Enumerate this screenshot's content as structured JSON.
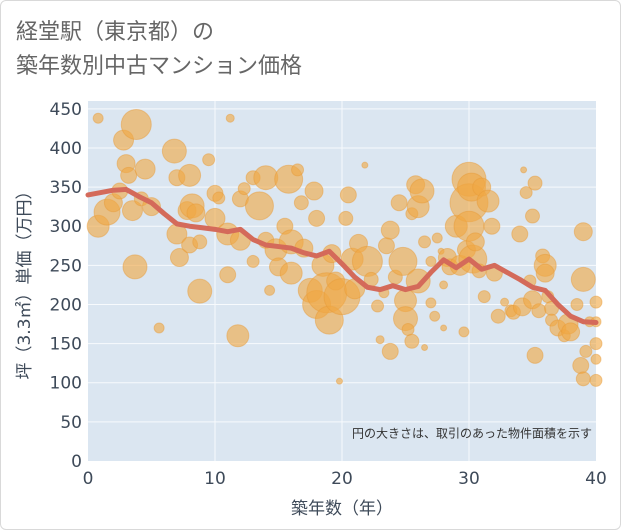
{
  "title_line1": "経堂駅（東京都）の",
  "title_line2": "築年数別中古マンション価格",
  "colors": {
    "bubble_fill": "#f0a844",
    "bubble_stroke": "#e69a36",
    "line": "#d46a5a",
    "plot_bg": "#dbe6f1",
    "grid": "#f7fafd"
  },
  "chart_data": {
    "type": "scatter",
    "xlabel": "築年数（年）",
    "ylabel": "坪（3.3㎡）単価（万円）",
    "xlim": [
      0,
      40
    ],
    "ylim": [
      0,
      460
    ],
    "xticks": [
      0,
      10,
      20,
      30,
      40
    ],
    "yticks": [
      0,
      50,
      100,
      150,
      200,
      250,
      300,
      350,
      400,
      450
    ],
    "annotation": "円の大きさは、取引のあった物件面積を示す",
    "grid": true,
    "trend_line": {
      "x": [
        0,
        1,
        2,
        3,
        4,
        5,
        6,
        7,
        8,
        9,
        10,
        11,
        12,
        13,
        14,
        15,
        16,
        17,
        18,
        19,
        20,
        21,
        22,
        23,
        24,
        25,
        26,
        27,
        28,
        29,
        30,
        31,
        32,
        33,
        34,
        35,
        36,
        37,
        38,
        39,
        40
      ],
      "y": [
        340,
        343,
        346,
        347,
        338,
        330,
        316,
        303,
        300,
        298,
        296,
        293,
        296,
        283,
        276,
        274,
        272,
        266,
        262,
        268,
        252,
        235,
        222,
        219,
        224,
        219,
        223,
        241,
        257,
        247,
        258,
        245,
        250,
        241,
        232,
        222,
        218,
        200,
        185,
        178,
        177
      ]
    },
    "bubbles": [
      {
        "x": 0.8,
        "y": 438,
        "s": 5
      },
      {
        "x": 0.8,
        "y": 300,
        "s": 11
      },
      {
        "x": 1.5,
        "y": 318,
        "s": 13
      },
      {
        "x": 2,
        "y": 330,
        "s": 9
      },
      {
        "x": 2.5,
        "y": 345,
        "s": 8
      },
      {
        "x": 2.8,
        "y": 410,
        "s": 10
      },
      {
        "x": 3,
        "y": 380,
        "s": 9
      },
      {
        "x": 3.2,
        "y": 365,
        "s": 8
      },
      {
        "x": 3.5,
        "y": 320,
        "s": 10
      },
      {
        "x": 3.7,
        "y": 248,
        "s": 12
      },
      {
        "x": 3.8,
        "y": 430,
        "s": 15
      },
      {
        "x": 4.2,
        "y": 335,
        "s": 7
      },
      {
        "x": 4.5,
        "y": 373,
        "s": 10
      },
      {
        "x": 5,
        "y": 325,
        "s": 9
      },
      {
        "x": 5.6,
        "y": 170,
        "s": 5
      },
      {
        "x": 6.8,
        "y": 396,
        "s": 12
      },
      {
        "x": 7,
        "y": 362,
        "s": 8
      },
      {
        "x": 7,
        "y": 290,
        "s": 10
      },
      {
        "x": 7.2,
        "y": 260,
        "s": 9
      },
      {
        "x": 7.8,
        "y": 320,
        "s": 9
      },
      {
        "x": 8,
        "y": 365,
        "s": 11
      },
      {
        "x": 8,
        "y": 276,
        "s": 8
      },
      {
        "x": 8.2,
        "y": 326,
        "s": 12
      },
      {
        "x": 8.5,
        "y": 317,
        "s": 9
      },
      {
        "x": 8.8,
        "y": 280,
        "s": 7
      },
      {
        "x": 8.8,
        "y": 217,
        "s": 12
      },
      {
        "x": 9.5,
        "y": 385,
        "s": 6
      },
      {
        "x": 10,
        "y": 310,
        "s": 10
      },
      {
        "x": 10,
        "y": 342,
        "s": 8
      },
      {
        "x": 10.3,
        "y": 336,
        "s": 6
      },
      {
        "x": 11,
        "y": 290,
        "s": 11
      },
      {
        "x": 11,
        "y": 238,
        "s": 8
      },
      {
        "x": 11.2,
        "y": 438,
        "s": 4
      },
      {
        "x": 11.8,
        "y": 160,
        "s": 11
      },
      {
        "x": 12,
        "y": 282,
        "s": 10
      },
      {
        "x": 12,
        "y": 335,
        "s": 8
      },
      {
        "x": 12.3,
        "y": 348,
        "s": 6
      },
      {
        "x": 13,
        "y": 362,
        "s": 7
      },
      {
        "x": 13,
        "y": 255,
        "s": 6
      },
      {
        "x": 13.5,
        "y": 326,
        "s": 14
      },
      {
        "x": 14,
        "y": 362,
        "s": 12
      },
      {
        "x": 14,
        "y": 282,
        "s": 8
      },
      {
        "x": 14.3,
        "y": 218,
        "s": 5
      },
      {
        "x": 14.8,
        "y": 270,
        "s": 11
      },
      {
        "x": 15,
        "y": 248,
        "s": 9
      },
      {
        "x": 15.5,
        "y": 300,
        "s": 8
      },
      {
        "x": 15.8,
        "y": 360,
        "s": 14
      },
      {
        "x": 16,
        "y": 280,
        "s": 12
      },
      {
        "x": 16,
        "y": 240,
        "s": 11
      },
      {
        "x": 16.5,
        "y": 372,
        "s": 6
      },
      {
        "x": 16.8,
        "y": 330,
        "s": 7
      },
      {
        "x": 17,
        "y": 272,
        "s": 9
      },
      {
        "x": 17.5,
        "y": 218,
        "s": 12
      },
      {
        "x": 17.8,
        "y": 345,
        "s": 9
      },
      {
        "x": 18,
        "y": 310,
        "s": 8
      },
      {
        "x": 18,
        "y": 200,
        "s": 14
      },
      {
        "x": 18.5,
        "y": 250,
        "s": 11
      },
      {
        "x": 18.8,
        "y": 215,
        "s": 20
      },
      {
        "x": 19,
        "y": 180,
        "s": 14
      },
      {
        "x": 19.2,
        "y": 265,
        "s": 9
      },
      {
        "x": 19.5,
        "y": 230,
        "s": 9
      },
      {
        "x": 19.8,
        "y": 102,
        "s": 3
      },
      {
        "x": 20,
        "y": 210,
        "s": 18
      },
      {
        "x": 20.3,
        "y": 310,
        "s": 7
      },
      {
        "x": 20.5,
        "y": 340,
        "s": 8
      },
      {
        "x": 20.8,
        "y": 258,
        "s": 11
      },
      {
        "x": 21,
        "y": 220,
        "s": 10
      },
      {
        "x": 21.3,
        "y": 278,
        "s": 9
      },
      {
        "x": 21.8,
        "y": 378,
        "s": 3
      },
      {
        "x": 22,
        "y": 255,
        "s": 15
      },
      {
        "x": 22.3,
        "y": 232,
        "s": 7
      },
      {
        "x": 22.8,
        "y": 198,
        "s": 6
      },
      {
        "x": 23,
        "y": 155,
        "s": 4
      },
      {
        "x": 23.3,
        "y": 215,
        "s": 5
      },
      {
        "x": 23.5,
        "y": 275,
        "s": 8
      },
      {
        "x": 23.8,
        "y": 140,
        "s": 8
      },
      {
        "x": 23.8,
        "y": 295,
        "s": 9
      },
      {
        "x": 24.2,
        "y": 235,
        "s": 7
      },
      {
        "x": 24.5,
        "y": 330,
        "s": 8
      },
      {
        "x": 24.8,
        "y": 255,
        "s": 14
      },
      {
        "x": 25,
        "y": 205,
        "s": 11
      },
      {
        "x": 25,
        "y": 182,
        "s": 12
      },
      {
        "x": 25.2,
        "y": 168,
        "s": 6
      },
      {
        "x": 25.5,
        "y": 153,
        "s": 7
      },
      {
        "x": 25.5,
        "y": 316,
        "s": 6
      },
      {
        "x": 25.8,
        "y": 353,
        "s": 9
      },
      {
        "x": 26,
        "y": 325,
        "s": 11
      },
      {
        "x": 26,
        "y": 230,
        "s": 12
      },
      {
        "x": 26.3,
        "y": 345,
        "s": 12
      },
      {
        "x": 26.5,
        "y": 280,
        "s": 6
      },
      {
        "x": 26.5,
        "y": 145,
        "s": 3
      },
      {
        "x": 27,
        "y": 255,
        "s": 5
      },
      {
        "x": 27,
        "y": 202,
        "s": 5
      },
      {
        "x": 27.3,
        "y": 185,
        "s": 5
      },
      {
        "x": 27.5,
        "y": 285,
        "s": 5
      },
      {
        "x": 27.8,
        "y": 268,
        "s": 3
      },
      {
        "x": 28,
        "y": 170,
        "s": 3
      },
      {
        "x": 28,
        "y": 225,
        "s": 4
      },
      {
        "x": 28.3,
        "y": 260,
        "s": 9
      },
      {
        "x": 28.5,
        "y": 248,
        "s": 8
      },
      {
        "x": 29,
        "y": 300,
        "s": 11
      },
      {
        "x": 29.3,
        "y": 250,
        "s": 10
      },
      {
        "x": 29.6,
        "y": 165,
        "s": 5
      },
      {
        "x": 29.8,
        "y": 270,
        "s": 9
      },
      {
        "x": 30,
        "y": 360,
        "s": 17
      },
      {
        "x": 30,
        "y": 330,
        "s": 19
      },
      {
        "x": 30,
        "y": 300,
        "s": 15
      },
      {
        "x": 30.2,
        "y": 350,
        "s": 14
      },
      {
        "x": 30.3,
        "y": 258,
        "s": 14
      },
      {
        "x": 30.5,
        "y": 280,
        "s": 9
      },
      {
        "x": 30.8,
        "y": 243,
        "s": 7
      },
      {
        "x": 31,
        "y": 350,
        "s": 9
      },
      {
        "x": 31.2,
        "y": 210,
        "s": 6
      },
      {
        "x": 31.5,
        "y": 332,
        "s": 11
      },
      {
        "x": 31.8,
        "y": 300,
        "s": 8
      },
      {
        "x": 32,
        "y": 240,
        "s": 8
      },
      {
        "x": 32.3,
        "y": 185,
        "s": 7
      },
      {
        "x": 32.8,
        "y": 203,
        "s": 4
      },
      {
        "x": 33.3,
        "y": 192,
        "s": 6
      },
      {
        "x": 33.5,
        "y": 190,
        "s": 7
      },
      {
        "x": 34,
        "y": 290,
        "s": 8
      },
      {
        "x": 34.2,
        "y": 197,
        "s": 9
      },
      {
        "x": 34.3,
        "y": 372,
        "s": 3
      },
      {
        "x": 34.5,
        "y": 343,
        "s": 6
      },
      {
        "x": 34.8,
        "y": 230,
        "s": 6
      },
      {
        "x": 35,
        "y": 313,
        "s": 7
      },
      {
        "x": 35,
        "y": 206,
        "s": 9
      },
      {
        "x": 35.2,
        "y": 355,
        "s": 7
      },
      {
        "x": 35.2,
        "y": 135,
        "s": 8
      },
      {
        "x": 35.5,
        "y": 192,
        "s": 7
      },
      {
        "x": 35.8,
        "y": 262,
        "s": 7
      },
      {
        "x": 36,
        "y": 250,
        "s": 11
      },
      {
        "x": 36,
        "y": 240,
        "s": 9
      },
      {
        "x": 36.2,
        "y": 210,
        "s": 6
      },
      {
        "x": 36.5,
        "y": 195,
        "s": 7
      },
      {
        "x": 36.5,
        "y": 180,
        "s": 6
      },
      {
        "x": 37,
        "y": 170,
        "s": 8
      },
      {
        "x": 37.5,
        "y": 160,
        "s": 6
      },
      {
        "x": 37.8,
        "y": 175,
        "s": 10
      },
      {
        "x": 38,
        "y": 165,
        "s": 9
      },
      {
        "x": 38.5,
        "y": 200,
        "s": 6
      },
      {
        "x": 38.8,
        "y": 122,
        "s": 8
      },
      {
        "x": 39,
        "y": 232,
        "s": 12
      },
      {
        "x": 39,
        "y": 293,
        "s": 9
      },
      {
        "x": 39,
        "y": 105,
        "s": 7
      },
      {
        "x": 39.2,
        "y": 140,
        "s": 6
      },
      {
        "x": 39.5,
        "y": 178,
        "s": 5
      },
      {
        "x": 40,
        "y": 203,
        "s": 6
      },
      {
        "x": 40,
        "y": 150,
        "s": 6
      },
      {
        "x": 40,
        "y": 130,
        "s": 5
      },
      {
        "x": 40,
        "y": 103,
        "s": 6
      },
      {
        "x": 40,
        "y": 178,
        "s": 5
      }
    ]
  }
}
